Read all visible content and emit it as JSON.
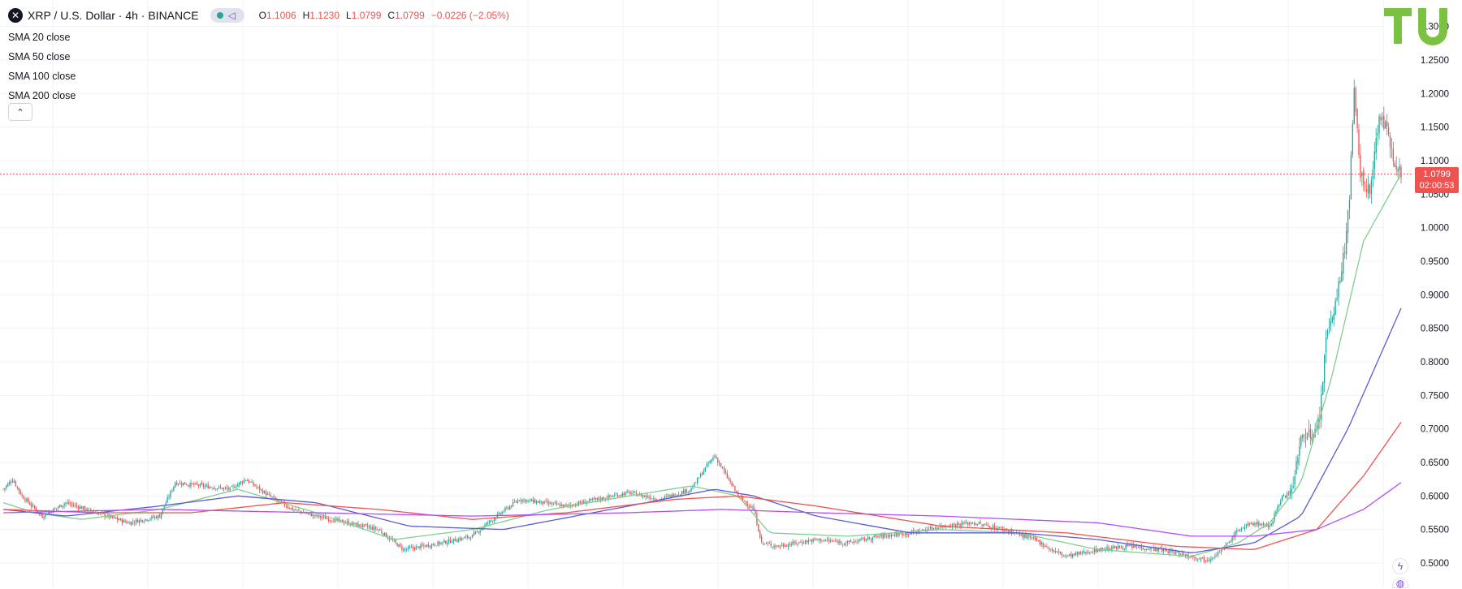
{
  "header": {
    "symbol_icon": "x-logo-icon",
    "title": "XRP / U.S. Dollar · 4h · BINANCE",
    "ohlc": [
      {
        "k": "O",
        "v": "1.1006"
      },
      {
        "k": "H",
        "v": "1.1230"
      },
      {
        "k": "L",
        "v": "1.0799"
      },
      {
        "k": "C",
        "v": "1.0799"
      },
      {
        "k": "",
        "v": "−0.0226 (−2.05%)"
      }
    ]
  },
  "indicators": [
    "SMA 20 close",
    "SMA 50 close",
    "SMA 100 close",
    "SMA 200 close"
  ],
  "price_tag": {
    "price": "1.0799",
    "countdown": "02:00:53"
  },
  "colors": {
    "up": "#26a69a",
    "down": "#ef5350",
    "sma20": "#7fcf8f",
    "sma50": "#5b5bd6",
    "sma100": "#ef5350",
    "sma200": "#b24cff",
    "grid": "#f0f3fa",
    "axis_text": "#131722",
    "tag": "#ef5350",
    "logo": "#7cc242"
  },
  "chart_data": {
    "type": "line",
    "symbol": "XRP / U.S. Dollar",
    "interval": "4h",
    "exchange": "BINANCE",
    "last_price": 1.0799,
    "y_ticks": [
      "0.5000",
      "0.5500",
      "0.6000",
      "0.6500",
      "0.7000",
      "0.7500",
      "0.8000",
      "0.8500",
      "0.9000",
      "0.9500",
      "1.0000",
      "1.0500",
      "1.1000",
      "1.1500",
      "1.2000",
      "1.2500",
      "1.3000"
    ],
    "ylim": [
      0.48,
      1.32
    ],
    "grid": true,
    "close_path": [
      [
        0,
        0.61
      ],
      [
        6,
        0.625
      ],
      [
        12,
        0.6
      ],
      [
        25,
        0.57
      ],
      [
        40,
        0.59
      ],
      [
        60,
        0.575
      ],
      [
        80,
        0.56
      ],
      [
        100,
        0.57
      ],
      [
        110,
        0.62
      ],
      [
        145,
        0.61
      ],
      [
        155,
        0.625
      ],
      [
        170,
        0.6
      ],
      [
        185,
        0.58
      ],
      [
        200,
        0.57
      ],
      [
        220,
        0.56
      ],
      [
        240,
        0.55
      ],
      [
        256,
        0.52
      ],
      [
        280,
        0.53
      ],
      [
        300,
        0.54
      ],
      [
        310,
        0.56
      ],
      [
        330,
        0.595
      ],
      [
        360,
        0.585
      ],
      [
        400,
        0.605
      ],
      [
        420,
        0.595
      ],
      [
        440,
        0.61
      ],
      [
        450,
        0.645
      ],
      [
        455,
        0.66
      ],
      [
        465,
        0.62
      ],
      [
        470,
        0.6
      ],
      [
        480,
        0.58
      ],
      [
        485,
        0.53
      ],
      [
        495,
        0.525
      ],
      [
        520,
        0.535
      ],
      [
        540,
        0.53
      ],
      [
        560,
        0.54
      ],
      [
        580,
        0.545
      ],
      [
        600,
        0.555
      ],
      [
        620,
        0.56
      ],
      [
        640,
        0.55
      ],
      [
        660,
        0.535
      ],
      [
        670,
        0.52
      ],
      [
        680,
        0.51
      ],
      [
        700,
        0.52
      ],
      [
        720,
        0.525
      ],
      [
        740,
        0.52
      ],
      [
        760,
        0.51
      ],
      [
        770,
        0.505
      ],
      [
        780,
        0.52
      ],
      [
        790,
        0.55
      ],
      [
        800,
        0.56
      ],
      [
        810,
        0.555
      ],
      [
        818,
        0.6
      ],
      [
        823,
        0.6
      ],
      [
        828,
        0.66
      ],
      [
        832,
        0.7
      ],
      [
        838,
        0.68
      ],
      [
        842,
        0.72
      ],
      [
        846,
        0.83
      ],
      [
        850,
        0.87
      ],
      [
        855,
        0.92
      ],
      [
        858,
        0.97
      ],
      [
        861,
        1.05
      ],
      [
        864,
        1.2
      ],
      [
        868,
        1.08
      ],
      [
        874,
        1.05
      ],
      [
        880,
        1.17
      ],
      [
        884,
        1.15
      ],
      [
        890,
        1.1
      ],
      [
        894,
        1.08
      ]
    ],
    "sma_paths": {
      "sma20": [
        [
          0,
          0.59
        ],
        [
          20,
          0.575
        ],
        [
          50,
          0.565
        ],
        [
          100,
          0.58
        ],
        [
          150,
          0.61
        ],
        [
          200,
          0.575
        ],
        [
          250,
          0.535
        ],
        [
          300,
          0.55
        ],
        [
          350,
          0.58
        ],
        [
          400,
          0.6
        ],
        [
          440,
          0.615
        ],
        [
          470,
          0.6
        ],
        [
          490,
          0.545
        ],
        [
          540,
          0.54
        ],
        [
          600,
          0.55
        ],
        [
          650,
          0.545
        ],
        [
          700,
          0.52
        ],
        [
          760,
          0.51
        ],
        [
          790,
          0.53
        ],
        [
          810,
          0.56
        ],
        [
          830,
          0.62
        ],
        [
          850,
          0.78
        ],
        [
          870,
          0.98
        ],
        [
          894,
          1.08
        ]
      ],
      "sma50": [
        [
          0,
          0.58
        ],
        [
          40,
          0.57
        ],
        [
          100,
          0.585
        ],
        [
          150,
          0.6
        ],
        [
          200,
          0.59
        ],
        [
          260,
          0.555
        ],
        [
          320,
          0.55
        ],
        [
          400,
          0.585
        ],
        [
          455,
          0.61
        ],
        [
          480,
          0.6
        ],
        [
          520,
          0.57
        ],
        [
          580,
          0.545
        ],
        [
          650,
          0.545
        ],
        [
          700,
          0.535
        ],
        [
          760,
          0.515
        ],
        [
          800,
          0.53
        ],
        [
          830,
          0.57
        ],
        [
          860,
          0.7
        ],
        [
          894,
          0.88
        ]
      ],
      "sma100": [
        [
          0,
          0.58
        ],
        [
          60,
          0.575
        ],
        [
          120,
          0.575
        ],
        [
          180,
          0.59
        ],
        [
          240,
          0.58
        ],
        [
          300,
          0.565
        ],
        [
          360,
          0.575
        ],
        [
          430,
          0.595
        ],
        [
          470,
          0.6
        ],
        [
          520,
          0.585
        ],
        [
          600,
          0.555
        ],
        [
          680,
          0.545
        ],
        [
          750,
          0.525
        ],
        [
          800,
          0.52
        ],
        [
          840,
          0.55
        ],
        [
          870,
          0.63
        ],
        [
          894,
          0.71
        ]
      ],
      "sma200": [
        [
          0,
          0.575
        ],
        [
          100,
          0.58
        ],
        [
          200,
          0.575
        ],
        [
          300,
          0.57
        ],
        [
          400,
          0.575
        ],
        [
          460,
          0.58
        ],
        [
          520,
          0.575
        ],
        [
          600,
          0.57
        ],
        [
          700,
          0.56
        ],
        [
          760,
          0.54
        ],
        [
          800,
          0.54
        ],
        [
          840,
          0.55
        ],
        [
          870,
          0.58
        ],
        [
          894,
          0.62
        ]
      ]
    }
  }
}
